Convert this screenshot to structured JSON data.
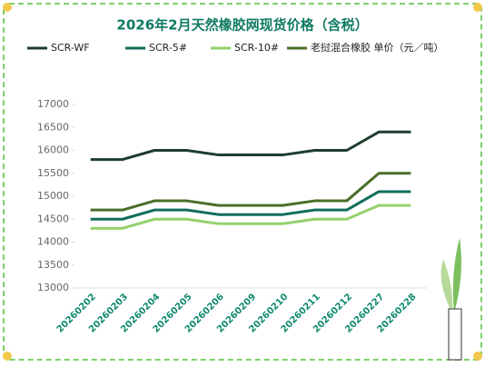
{
  "chart_data": {
    "type": "line",
    "title": "2026年2月天然橡胶网现货价格（含税）",
    "categories": [
      "20260202",
      "20260203",
      "20260204",
      "20260205",
      "20260206",
      "20260209",
      "20260210",
      "20260211",
      "20260212",
      "20260227",
      "20260228"
    ],
    "series": [
      {
        "name": "SCR-WF",
        "color": "#1e3d2c",
        "values": [
          15800,
          15800,
          16000,
          16000,
          15900,
          15900,
          15900,
          16000,
          16000,
          16400,
          16400
        ]
      },
      {
        "name": "SCR-5#",
        "color": "#0f6e5a",
        "values": [
          14500,
          14500,
          14700,
          14700,
          14600,
          14600,
          14600,
          14700,
          14700,
          15100,
          15100
        ]
      },
      {
        "name": "SCR-10#",
        "color": "#92d16c",
        "values": [
          14300,
          14300,
          14500,
          14500,
          14400,
          14400,
          14400,
          14500,
          14500,
          14800,
          14800
        ]
      },
      {
        "name": "老挝混合橡胶 单价（元／吨）",
        "color": "#4a6e2a",
        "values": [
          14700,
          14700,
          14900,
          14900,
          14800,
          14800,
          14800,
          14900,
          14900,
          15500,
          15500
        ]
      }
    ],
    "ylim": [
      13000,
      17000
    ],
    "yticks": [
      13000,
      13500,
      14000,
      14500,
      15000,
      15500,
      16000,
      16500,
      17000
    ],
    "grid": false
  }
}
